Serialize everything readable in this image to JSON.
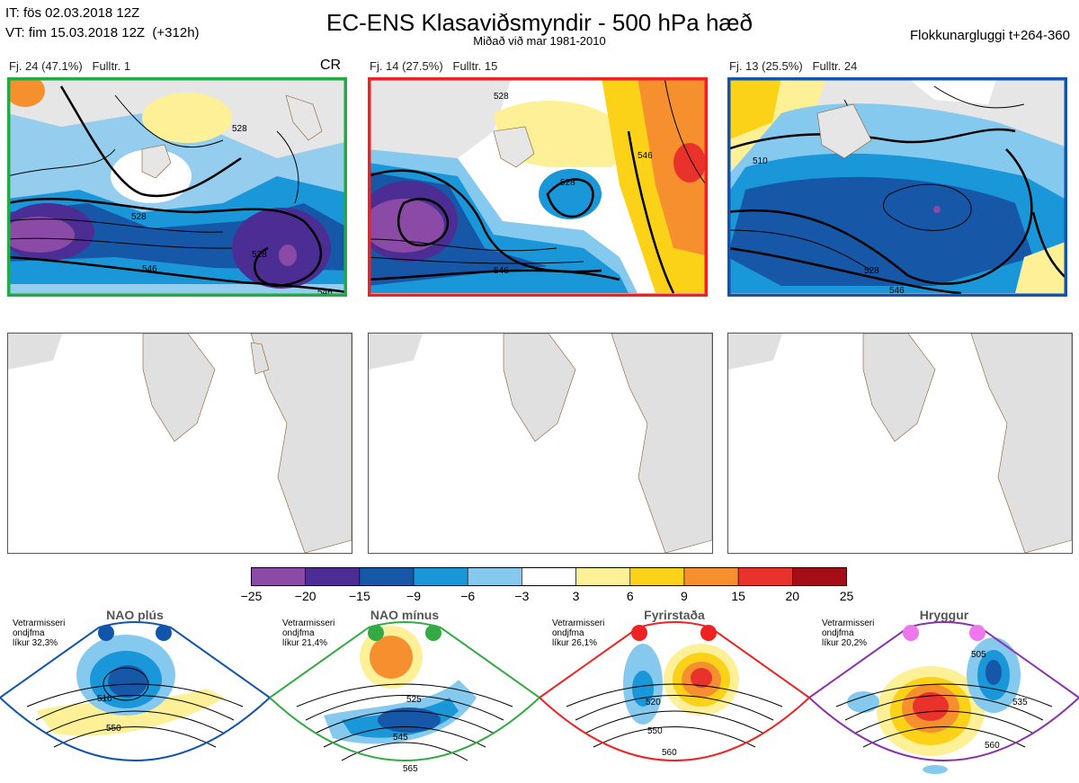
{
  "header": {
    "init_time": "IT: fös 02.03.2018 12Z",
    "valid_time": "VT: fim 15.03.2018 12Z  (+312h)",
    "title": "EC-ENS Klasaviðsmyndir - 500 hPa hæð",
    "subtitle": "Miðað við mar 1981-2010",
    "window": "Flokkunargluggi t+264-360",
    "cr_label": "CR"
  },
  "clusters": [
    {
      "label": "Fj. 24 (47.1%)",
      "rep": "Fulltr. 1",
      "border_color": "#22aa44",
      "contours": [
        "528",
        "546",
        "528",
        "528",
        "546"
      ]
    },
    {
      "label": "Fj. 14 (27.5%)",
      "rep": "Fulltr. 15",
      "border_color": "#ee2222",
      "contours": [
        "528",
        "528",
        "546",
        "546"
      ]
    },
    {
      "label": "Fj. 13 (25.5%)",
      "rep": "Fulltr. 24",
      "border_color": "#1155aa",
      "contours": [
        "510",
        "528",
        "546"
      ]
    }
  ],
  "colorbar": {
    "colors": [
      "#8a4aa6",
      "#4b2d94",
      "#1658a7",
      "#1a97d9",
      "#86c9ef",
      "#ffffff",
      "#fdf097",
      "#fcd219",
      "#f6902e",
      "#e9322c",
      "#a40f17"
    ],
    "ticks": [
      "−25",
      "−20",
      "−15",
      "−9",
      "−6",
      "−3",
      "3",
      "6",
      "9",
      "15",
      "20",
      "25"
    ]
  },
  "regimes": [
    {
      "name": "NAO plús",
      "note": "Vetrarmisseri\nondjfma\nlíkur 32,3%",
      "color": "#1155aa",
      "dot_color": "#1155aa",
      "contours": [
        "510",
        "550"
      ]
    },
    {
      "name": "NAO mínus",
      "note": "Vetrarmisseri\nondjfma\nlíkur 21,4%",
      "color": "#33aa44",
      "dot_color": "#33aa44",
      "contours": [
        "525",
        "545",
        "565"
      ]
    },
    {
      "name": "Fyrirstaða",
      "note": "Vetrarmisseri\nondjfma\nlíkur 26,1%",
      "color": "#ee2222",
      "dot_color": "#ee2222",
      "contours": [
        "520",
        "550",
        "560"
      ]
    },
    {
      "name": "Hryggur",
      "note": "Vetrarmisseri\nondjfma\nlíkur 20,2%",
      "color": "#8833aa",
      "dot_color": "#ee77ee",
      "contours": [
        "505",
        "535",
        "560"
      ]
    }
  ]
}
